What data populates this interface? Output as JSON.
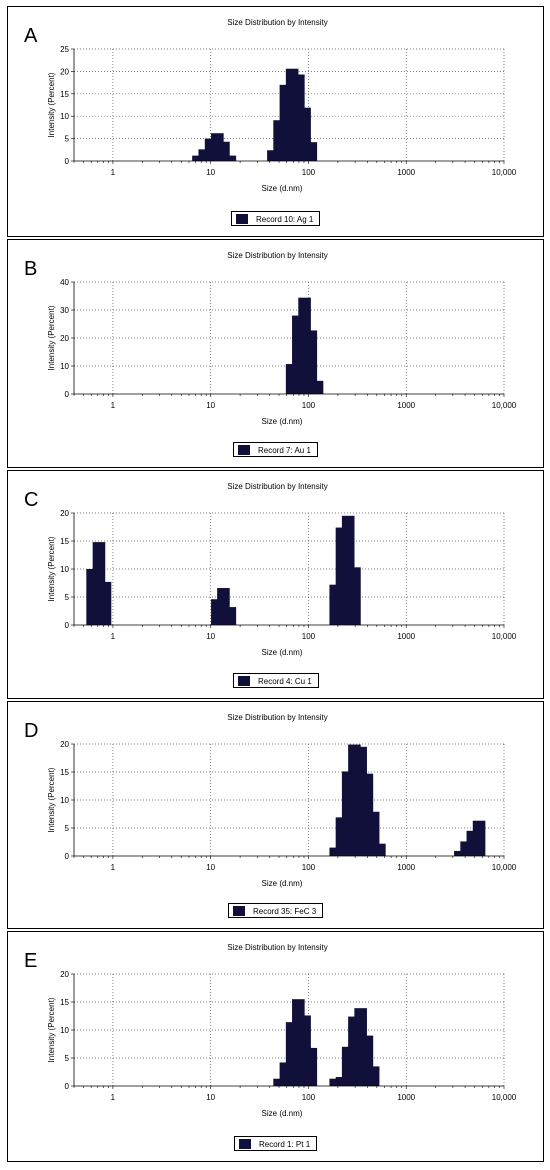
{
  "chart_data": [
    {
      "type": "bar",
      "panel_label": "A",
      "title": "Size Distribution by Intensity",
      "xlabel": "Size (d.nm)",
      "ylabel": "Intensity (Percent)",
      "x_scale": "log",
      "xlim": [
        0.4,
        10000
      ],
      "x_ticks": [
        "1",
        "10",
        "100",
        "1000",
        "10,000"
      ],
      "ylim": [
        0,
        25
      ],
      "y_ticks": [
        "0",
        "5",
        "10",
        "15",
        "20",
        "25"
      ],
      "grid": true,
      "legend": "bottom-center",
      "series": [
        {
          "name": "Record 10: Ag 1",
          "x": [
            7.5,
            8.7,
            10.1,
            11.7,
            13.5,
            15.7,
            43.8,
            50.7,
            58.8,
            68.1,
            78.8,
            91.3,
            105.7
          ],
          "values": [
            1.2,
            2.6,
            5.0,
            6.2,
            4.3,
            1.2,
            2.4,
            9.1,
            17.0,
            20.6,
            19.3,
            11.9,
            4.2
          ]
        }
      ]
    },
    {
      "type": "bar",
      "panel_label": "B",
      "title": "Size Distribution by Intensity",
      "xlabel": "Size (d.nm)",
      "ylabel": "Intensity (Percent)",
      "x_scale": "log",
      "xlim": [
        0.4,
        10000
      ],
      "x_ticks": [
        "1",
        "10",
        "100",
        "1000",
        "10,000"
      ],
      "ylim": [
        0,
        40
      ],
      "y_ticks": [
        "0",
        "10",
        "20",
        "30",
        "40"
      ],
      "grid": true,
      "legend": "bottom-center",
      "series": [
        {
          "name": "Record 7: Au 1",
          "x": [
            68.1,
            78.8,
            91.3,
            105.7,
            122.4
          ],
          "values": [
            10.7,
            28.0,
            34.4,
            22.7,
            4.7
          ]
        }
      ]
    },
    {
      "type": "bar",
      "panel_label": "C",
      "title": "Size Distribution by Intensity",
      "xlabel": "Size (d.nm)",
      "ylabel": "Intensity (Percent)",
      "x_scale": "log",
      "xlim": [
        0.4,
        10000
      ],
      "x_ticks": [
        "1",
        "10",
        "100",
        "1000",
        "10,000"
      ],
      "ylim": [
        0,
        20
      ],
      "y_ticks": [
        "0",
        "5",
        "10",
        "15",
        "20"
      ],
      "grid": true,
      "legend": "bottom-center",
      "series": [
        {
          "name": "Record 4: Cu 1",
          "x": [
            0.62,
            0.72,
            0.83,
            11.7,
            13.5,
            15.7,
            190.1,
            220.2,
            255.0,
            295.3
          ],
          "values": [
            10.0,
            14.8,
            7.7,
            4.6,
            6.6,
            3.2,
            7.2,
            17.4,
            19.5,
            10.3
          ]
        }
      ]
    },
    {
      "type": "bar",
      "panel_label": "D",
      "title": "Size Distribution by Intensity",
      "xlabel": "Size (d.nm)",
      "ylabel": "Intensity (Percent)",
      "x_scale": "log",
      "xlim": [
        0.4,
        10000
      ],
      "x_ticks": [
        "1",
        "10",
        "100",
        "1000",
        "10,000"
      ],
      "ylim": [
        0,
        20
      ],
      "y_ticks": [
        "0",
        "5",
        "10",
        "15",
        "20"
      ],
      "grid": true,
      "legend": "bottom-center",
      "series": [
        {
          "name": "Record 35: FeC 3",
          "x": [
            190.1,
            220.2,
            255.0,
            295.3,
            342.0,
            396.1,
            458.7,
            531.2,
            3580,
            4145,
            4801,
            5560
          ],
          "values": [
            1.5,
            6.9,
            15.1,
            19.9,
            19.5,
            14.7,
            7.9,
            2.2,
            0.9,
            2.6,
            4.5,
            6.3
          ]
        }
      ]
    },
    {
      "type": "bar",
      "panel_label": "E",
      "title": "Size Distribution by Intensity",
      "xlabel": "Size (d.nm)",
      "ylabel": "Intensity (Percent)",
      "x_scale": "log",
      "xlim": [
        0.4,
        10000
      ],
      "x_ticks": [
        "1",
        "10",
        "100",
        "1000",
        "10,000"
      ],
      "ylim": [
        0,
        20
      ],
      "y_ticks": [
        "0",
        "5",
        "10",
        "15",
        "20"
      ],
      "grid": true,
      "legend": "bottom-center",
      "series": [
        {
          "name": "Record 1: Pt 1",
          "x": [
            50.7,
            58.8,
            68.1,
            78.8,
            91.3,
            105.7,
            190.1,
            220.2,
            255.0,
            295.3,
            342.0,
            396.1,
            458.7
          ],
          "values": [
            1.3,
            4.2,
            11.4,
            15.5,
            12.6,
            6.8,
            1.3,
            1.6,
            7.0,
            12.4,
            13.9,
            9.0,
            3.5
          ]
        }
      ]
    }
  ],
  "colors": {
    "bar": "#10103a",
    "grid": "#555555",
    "axis": "#000000"
  }
}
